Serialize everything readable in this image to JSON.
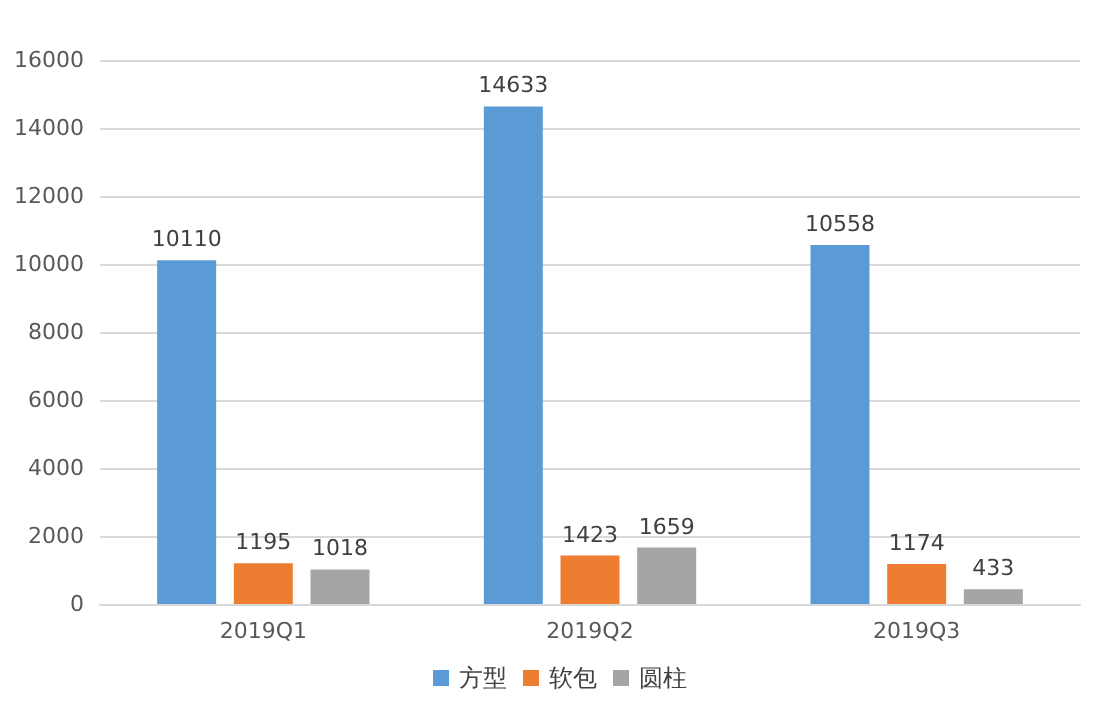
{
  "chart_data": {
    "type": "bar",
    "categories": [
      "2019Q1",
      "2019Q2",
      "2019Q3"
    ],
    "series": [
      {
        "name": "方型",
        "color": "#5b9bd5",
        "values": [
          10110,
          14633,
          10558
        ]
      },
      {
        "name": "软包",
        "color": "#ed7d31",
        "values": [
          1195,
          1423,
          1174
        ]
      },
      {
        "name": "圆柱",
        "color": "#a5a5a5",
        "values": [
          1018,
          1659,
          433
        ]
      }
    ],
    "ylim": [
      0,
      16000
    ],
    "yticks": [
      0,
      2000,
      4000,
      6000,
      8000,
      10000,
      12000,
      14000,
      16000
    ],
    "grid": "y",
    "legend": "bottom",
    "data_labels": true
  }
}
